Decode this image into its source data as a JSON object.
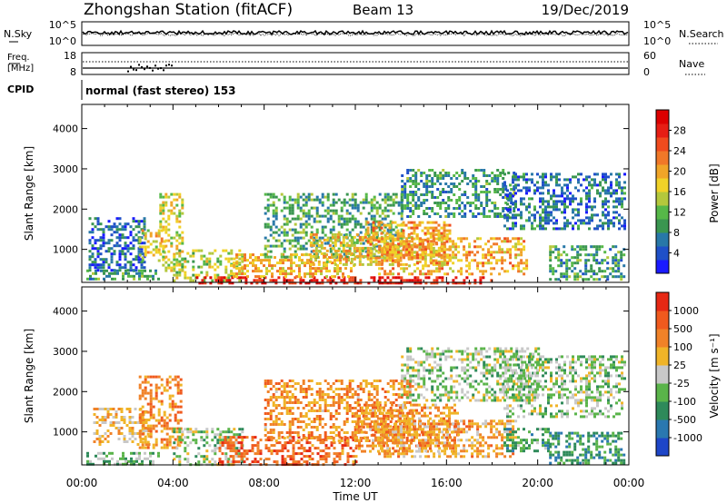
{
  "header": {
    "station": "Zhongshan Station (fitACF)",
    "beam": "Beam 13",
    "date": "19/Dec/2019"
  },
  "noise_panel": {
    "left_label": "N.Sky",
    "left_ticks": [
      "10^5",
      "10^0"
    ],
    "right_label": "N.Search",
    "right_ticks": [
      "10^5",
      "10^0"
    ]
  },
  "freq_panel": {
    "left_label_line1": "Freq.",
    "left_label_line2": "[MHz]",
    "left_ticks": [
      "18",
      "8"
    ],
    "right_label": "Nave",
    "right_ticks": [
      "60",
      "0"
    ]
  },
  "cpid_panel": {
    "label": "CPID",
    "mode_text": "normal (fast stereo) 153"
  },
  "chart_data": [
    {
      "type": "heatmap",
      "title": "",
      "xlabel": "",
      "ylabel": "Slant Range [km]",
      "xlim": [
        0,
        24
      ],
      "ylim": [
        180,
        4600
      ],
      "y_ticks": [
        1000,
        2000,
        3000,
        4000
      ],
      "x_tick_labels": [
        "00:00",
        "04:00",
        "08:00",
        "12:00",
        "16:00",
        "20:00",
        "00:00"
      ],
      "colorbar": {
        "label": "Power [dB]",
        "tick_labels": [
          "4",
          "8",
          "12",
          "16",
          "20",
          "24",
          "28"
        ],
        "colors": [
          "#1a1aff",
          "#1f50c8",
          "#2878a8",
          "#3a9650",
          "#56b848",
          "#b4c83c",
          "#f0d228",
          "#f0a528",
          "#f07828",
          "#f04b1e",
          "#e61e14",
          "#dc0000"
        ]
      },
      "regions": [
        {
          "t0": 0.2,
          "t1": 3.5,
          "r0": 250,
          "r1": 500,
          "v": 0.3
        },
        {
          "t0": 0.3,
          "t1": 2.8,
          "r0": 500,
          "r1": 1800,
          "v": 0.18
        },
        {
          "t0": 2.5,
          "t1": 3.6,
          "r0": 700,
          "r1": 1500,
          "v": 0.55
        },
        {
          "t0": 3.4,
          "t1": 4.4,
          "r0": 400,
          "r1": 2400,
          "v": 0.5
        },
        {
          "t0": 4.0,
          "t1": 7.0,
          "r0": 200,
          "r1": 1000,
          "v": 0.45
        },
        {
          "t0": 5.0,
          "t1": 18.0,
          "r0": 180,
          "r1": 330,
          "v": 0.9
        },
        {
          "t0": 6.5,
          "t1": 12.0,
          "r0": 300,
          "r1": 900,
          "v": 0.6
        },
        {
          "t0": 8.0,
          "t1": 14.0,
          "r0": 800,
          "r1": 2400,
          "v": 0.32
        },
        {
          "t0": 10.0,
          "t1": 16.0,
          "r0": 600,
          "r1": 1400,
          "v": 0.55
        },
        {
          "t0": 12.5,
          "t1": 16.2,
          "r0": 700,
          "r1": 1700,
          "v": 0.65
        },
        {
          "t0": 13.0,
          "t1": 19.5,
          "r0": 400,
          "r1": 1300,
          "v": 0.62
        },
        {
          "t0": 14.0,
          "t1": 19.0,
          "r0": 1800,
          "r1": 3000,
          "v": 0.28
        },
        {
          "t0": 18.5,
          "t1": 23.8,
          "r0": 1500,
          "r1": 2900,
          "v": 0.2
        },
        {
          "t0": 20.5,
          "t1": 23.8,
          "r0": 250,
          "r1": 1100,
          "v": 0.3
        }
      ]
    },
    {
      "type": "heatmap",
      "title": "",
      "xlabel": "Time UT",
      "ylabel": "Slant Range [km]",
      "xlim": [
        0,
        24
      ],
      "ylim": [
        180,
        4600
      ],
      "y_ticks": [
        1000,
        2000,
        3000,
        4000
      ],
      "x_tick_labels": [
        "00:00",
        "04:00",
        "08:00",
        "12:00",
        "16:00",
        "20:00",
        "00:00"
      ],
      "colorbar": {
        "label": "Velocity [m s⁻¹]",
        "tick_labels": [
          "1000",
          "500",
          "100",
          "25",
          "-25",
          "-100",
          "-500",
          "-1000"
        ],
        "colors": [
          "#1e46c8",
          "#2a78b0",
          "#2e8a5a",
          "#5ab44a",
          "#c8c8c8",
          "#f0b428",
          "#f08228",
          "#f05a1e",
          "#e62814"
        ]
      },
      "regions": [
        {
          "t0": 0.2,
          "t1": 3.5,
          "r0": 200,
          "r1": 500,
          "v": 0.38
        },
        {
          "t0": 0.5,
          "t1": 3.0,
          "r0": 700,
          "r1": 1600,
          "v": 0.62
        },
        {
          "t0": 2.5,
          "t1": 4.4,
          "r0": 600,
          "r1": 2400,
          "v": 0.72
        },
        {
          "t0": 4.0,
          "t1": 7.0,
          "r0": 200,
          "r1": 1100,
          "v": 0.45
        },
        {
          "t0": 6.0,
          "t1": 12.0,
          "r0": 200,
          "r1": 900,
          "v": 0.8
        },
        {
          "t0": 8.0,
          "t1": 14.5,
          "r0": 800,
          "r1": 2300,
          "v": 0.7
        },
        {
          "t0": 12.0,
          "t1": 16.5,
          "r0": 500,
          "r1": 1700,
          "v": 0.68
        },
        {
          "t0": 13.0,
          "t1": 19.0,
          "r0": 400,
          "r1": 1300,
          "v": 0.66
        },
        {
          "t0": 14.0,
          "t1": 20.0,
          "r0": 1800,
          "r1": 3100,
          "v": 0.45
        },
        {
          "t0": 18.5,
          "t1": 23.8,
          "r0": 1400,
          "r1": 2900,
          "v": 0.44
        },
        {
          "t0": 18.5,
          "t1": 20.5,
          "r0": 500,
          "r1": 1100,
          "v": 0.32
        },
        {
          "t0": 20.5,
          "t1": 23.8,
          "r0": 250,
          "r1": 1000,
          "v": 0.28
        }
      ]
    }
  ]
}
